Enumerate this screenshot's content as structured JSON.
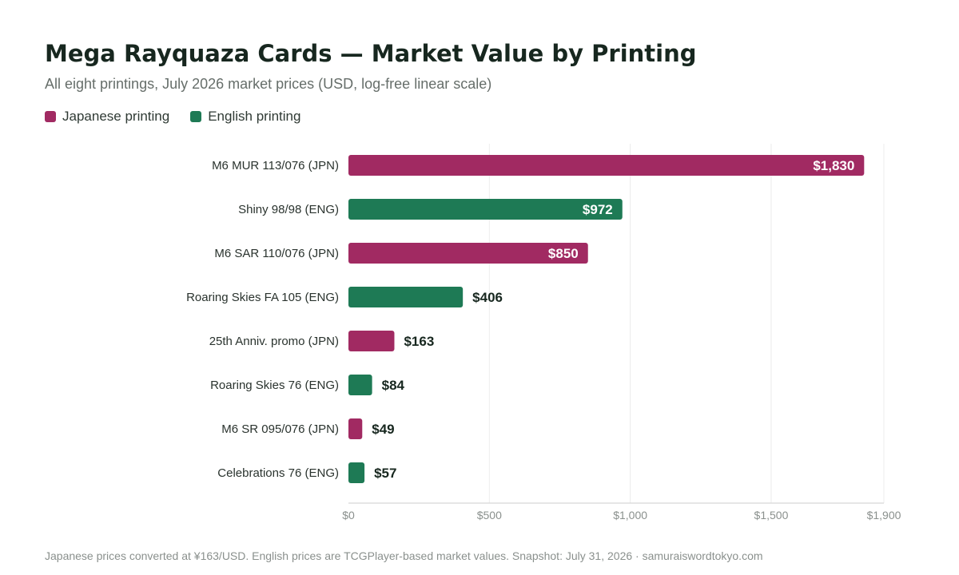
{
  "title": "Mega Rayquaza Cards — Market Value by Printing",
  "subtitle": "All eight printings, July 2026 market prices (USD, log-free linear scale)",
  "legend": [
    {
      "label": "Japanese printing",
      "color": "#a12a62"
    },
    {
      "label": "English printing",
      "color": "#1e7a55"
    }
  ],
  "footer": "Japanese prices converted at ¥163/USD. English prices are TCGPlayer-based market values. Snapshot: July 31, 2026 · samuraiswordtokyo.com",
  "chart_data": {
    "type": "bar",
    "orientation": "horizontal",
    "categories": [
      "M6 MUR 113/076 (JPN)",
      "Shiny 98/98 (ENG)",
      "M6 SAR 110/076 (JPN)",
      "Roaring Skies FA 105 (ENG)",
      "25th Anniv. promo (JPN)",
      "Roaring Skies 76 (ENG)",
      "M6 SR 095/076 (JPN)",
      "Celebrations 76 (ENG)"
    ],
    "values": [
      1830,
      972,
      850,
      406,
      163,
      84,
      49,
      57
    ],
    "value_labels": [
      "$1,830",
      "$972",
      "$850",
      "$406",
      "$163",
      "$84",
      "$49",
      "$57"
    ],
    "printing": [
      "JPN",
      "ENG",
      "JPN",
      "ENG",
      "JPN",
      "ENG",
      "JPN",
      "ENG"
    ],
    "colors": {
      "JPN": "#a12a62",
      "ENG": "#1e7a55"
    },
    "xlim": [
      0,
      1900
    ],
    "xticks": [
      0,
      500,
      1000,
      1500,
      1900
    ],
    "xtick_labels": [
      "$0",
      "$500",
      "$1,000",
      "$1,500",
      "$1,900"
    ],
    "grid": "vertical",
    "legend_position": "top-left"
  }
}
